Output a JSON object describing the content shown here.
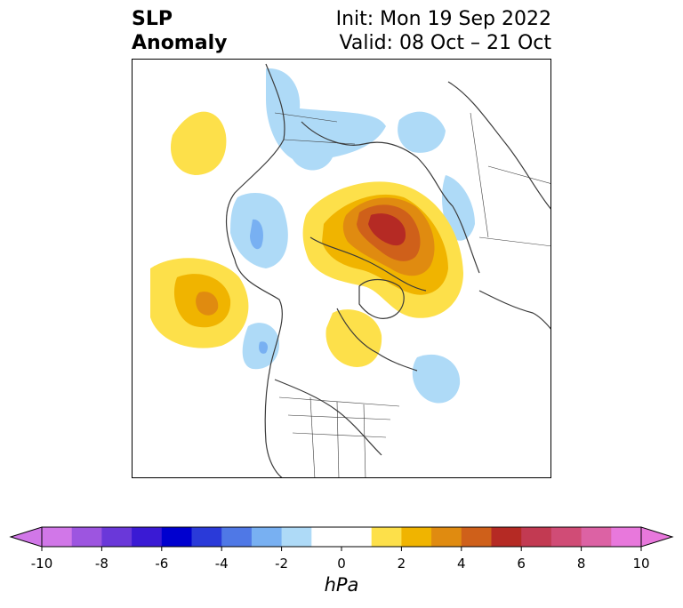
{
  "title": {
    "line1": "SLP",
    "line2": "Anomaly",
    "init": "Init: Mon 19 Sep 2022",
    "valid": "Valid: 08 Oct – 21 Oct"
  },
  "colorbar": {
    "units": "hPa",
    "min": -10,
    "max": 10,
    "step": 1,
    "extend": "both",
    "tick_labels": [
      "-10",
      "-8",
      "-6",
      "-4",
      "-2",
      "0",
      "2",
      "4",
      "6",
      "8",
      "10"
    ],
    "colors": [
      "#d177e8",
      "#9d55e0",
      "#6a38d9",
      "#3a1ad4",
      "#0000cf",
      "#2a3ad9",
      "#4f78e6",
      "#78b0f2",
      "#aedaf7",
      "#ffffff",
      "#ffffff",
      "#fde04a",
      "#f0b400",
      "#e08b10",
      "#cf601a",
      "#b52a24",
      "#c23a52",
      "#d04c76",
      "#dc62a4",
      "#e878dc"
    ],
    "min_extend_color": "#d177e8",
    "max_extend_color": "#e878dc"
  },
  "map": {
    "projection": "north-polar-stereographic",
    "features": [
      "coastlines",
      "country-borders",
      "state-borders"
    ],
    "anomaly_centers": [
      {
        "region": "arctic-siberia",
        "peak_hpa": 7,
        "sign": "positive"
      },
      {
        "region": "north-pacific",
        "peak_hpa": 4,
        "sign": "positive"
      },
      {
        "region": "hudson-bay",
        "peak_hpa": 2,
        "sign": "positive"
      },
      {
        "region": "gulf-of-alaska-west",
        "peak_hpa": -2,
        "sign": "negative"
      },
      {
        "region": "europe",
        "peak_hpa": -2,
        "sign": "negative"
      },
      {
        "region": "north-atlantic",
        "peak_hpa": -2,
        "sign": "negative"
      },
      {
        "region": "scandinavia-east",
        "peak_hpa": -2,
        "sign": "negative"
      }
    ]
  }
}
